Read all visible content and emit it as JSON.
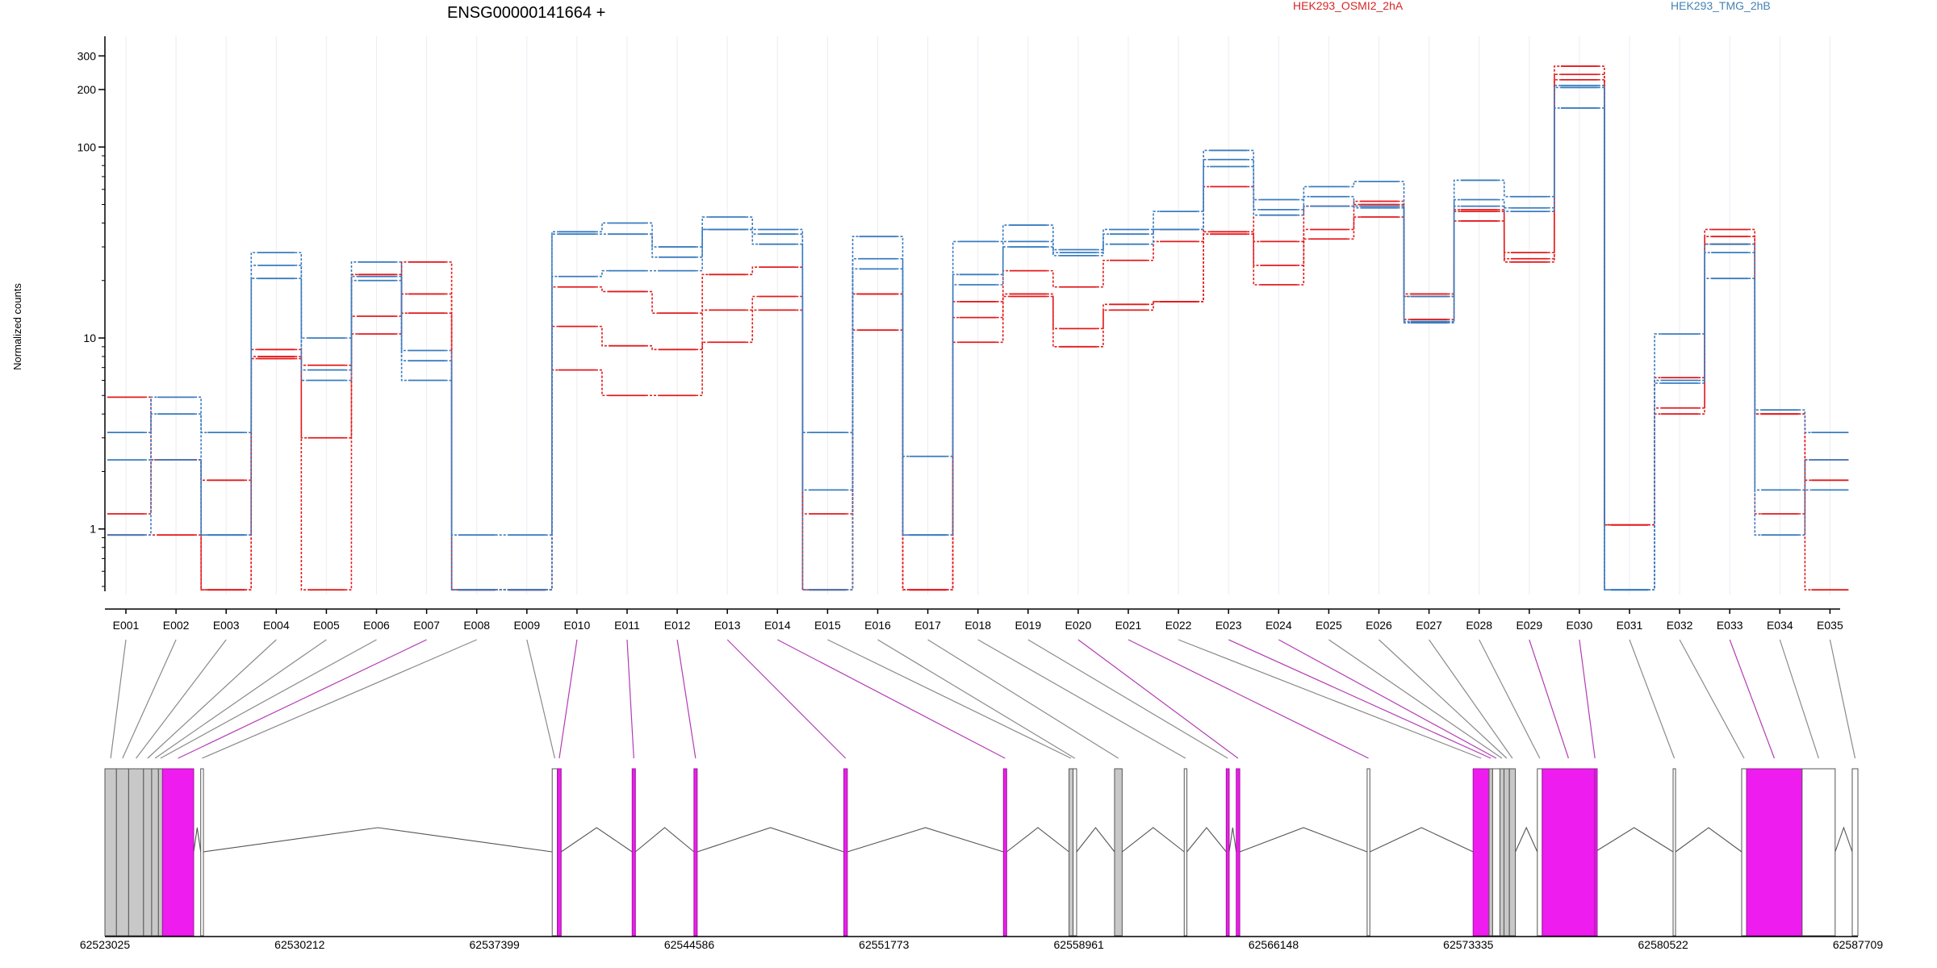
{
  "title": "ENSG00000141664 +",
  "ylabel": "Normalized counts",
  "legend": [
    {
      "name": "HEK293_OSMI2_2hA",
      "color": "#d62728"
    },
    {
      "name": "HEK293_TMG_2hB",
      "color": "#4682b4"
    }
  ],
  "colors": {
    "red": "#e31a1c",
    "blue": "#3a7bbf",
    "exon_gray": "#c8c8c8",
    "exon_magenta": "#ee1cee",
    "link_gray": "#8a8a8a",
    "link_magenta": "#b43cb4"
  },
  "chart_data": {
    "type": "line",
    "yscale": "log",
    "ylim": [
      0.5,
      380
    ],
    "yticks": [
      1,
      10,
      100,
      200,
      300
    ],
    "yticklabels": [
      "1",
      "10",
      "100",
      "200",
      "300"
    ],
    "grid": true,
    "categories": [
      "E001",
      "E002",
      "E003",
      "E004",
      "E005",
      "E006",
      "E007",
      "E008",
      "E009",
      "E010",
      "E011",
      "E012",
      "E013",
      "E014",
      "E015",
      "E016",
      "E017",
      "E018",
      "E019",
      "E020",
      "E021",
      "E022",
      "E023",
      "E024",
      "E025",
      "E026",
      "E027",
      "E028",
      "E029",
      "E030",
      "E031",
      "E032",
      "E033",
      "E034",
      "E035"
    ],
    "series": [
      {
        "group": "HEK293_OSMI2_2hA",
        "color": "red",
        "values": [
          4.9,
          2.3,
          1.8,
          8.7,
          7.2,
          21.5,
          13.5,
          0.48,
          0.48,
          11.5,
          9.1,
          8.7,
          14.0,
          16.5,
          1.2,
          17.0,
          0.48,
          12.8,
          16.5,
          11.2,
          15.0,
          15.5,
          35.0,
          24.0,
          37.0,
          52.0,
          17.0,
          46.0,
          26.0,
          265.0,
          1.05,
          6.2,
          34.0,
          4.0,
          0.48
        ]
      },
      {
        "group": "HEK293_OSMI2_2hA",
        "color": "red",
        "values": [
          0.93,
          0.93,
          0.48,
          7.8,
          3.0,
          13.0,
          17.0,
          0.48,
          0.48,
          6.8,
          5.0,
          5.0,
          9.5,
          14.0,
          0.48,
          11.0,
          0.48,
          15.5,
          17.0,
          9.0,
          14.0,
          15.5,
          36.0,
          19.0,
          33.0,
          43.0,
          12.5,
          41.0,
          25.0,
          225.0,
          1.05,
          4.0,
          31.0,
          4.0,
          1.8
        ]
      },
      {
        "group": "HEK293_OSMI2_2hA",
        "color": "red",
        "values": [
          1.2,
          2.3,
          0.48,
          8.0,
          0.48,
          10.5,
          25.0,
          0.48,
          0.48,
          18.5,
          17.5,
          13.5,
          21.5,
          23.5,
          0.48,
          17.0,
          0.48,
          9.5,
          22.5,
          18.5,
          25.5,
          32.0,
          62.0,
          32.0,
          49.0,
          50.0,
          16.5,
          47.0,
          28.0,
          240.0,
          1.05,
          4.3,
          37.0,
          1.2,
          2.3
        ]
      },
      {
        "group": "HEK293_TMG_2hB",
        "color": "blue",
        "values": [
          2.3,
          4.9,
          0.93,
          28.0,
          10.0,
          25.0,
          8.6,
          0.93,
          0.93,
          36.0,
          40.0,
          30.0,
          43.0,
          37.0,
          3.2,
          34.0,
          2.4,
          32.0,
          39.0,
          29.0,
          37.0,
          46.0,
          96.0,
          53.0,
          62.0,
          66.0,
          16.5,
          67.0,
          55.0,
          205.0,
          0.48,
          10.5,
          31.0,
          4.2,
          3.2
        ]
      },
      {
        "group": "HEK293_TMG_2hB",
        "color": "blue",
        "values": [
          3.2,
          4.0,
          3.2,
          20.5,
          6.0,
          20.0,
          6.0,
          0.48,
          0.48,
          21.0,
          22.5,
          22.5,
          37.0,
          31.0,
          1.6,
          23.0,
          0.93,
          19.0,
          30.0,
          27.0,
          31.0,
          37.0,
          79.0,
          44.0,
          55.0,
          48.0,
          12.0,
          53.0,
          46.0,
          160.0,
          0.48,
          5.8,
          20.5,
          0.93,
          1.6
        ]
      },
      {
        "group": "HEK293_TMG_2hB",
        "color": "blue",
        "values": [
          0.93,
          2.3,
          0.93,
          24.0,
          6.8,
          21.0,
          7.6,
          0.48,
          0.48,
          35.0,
          35.0,
          26.5,
          37.0,
          35.0,
          0.48,
          26.0,
          0.93,
          21.5,
          32.0,
          28.0,
          35.0,
          37.0,
          86.0,
          47.0,
          49.0,
          49.0,
          12.2,
          49.0,
          48.0,
          210.0,
          0.48,
          6.0,
          28.0,
          1.6,
          2.3
        ]
      }
    ]
  },
  "gene_model": {
    "coordinates": [
      "62523025",
      "62530212",
      "62537399",
      "62544586",
      "62551773",
      "62558961",
      "62566148",
      "62573335",
      "62580522",
      "62587709"
    ],
    "genomic_start": 62523025,
    "genomic_end": 62587709,
    "exons": [
      {
        "id": "E001",
        "start": 62523025,
        "end": 62523450,
        "color": "gray"
      },
      {
        "id": "E002",
        "start": 62523450,
        "end": 62523900,
        "color": "gray"
      },
      {
        "id": "E003",
        "start": 62523900,
        "end": 62524450,
        "color": "gray"
      },
      {
        "id": "E004",
        "start": 62524450,
        "end": 62524750,
        "color": "gray"
      },
      {
        "id": "E005",
        "start": 62524750,
        "end": 62525000,
        "color": "gray"
      },
      {
        "id": "E006",
        "start": 62525000,
        "end": 62525150,
        "color": "gray"
      },
      {
        "id": "E007",
        "start": 62525150,
        "end": 62526300,
        "color": "magenta"
      },
      {
        "id": "E008",
        "start": 62526560,
        "end": 62526660,
        "color": "white"
      },
      {
        "id": "E009",
        "start": 62539530,
        "end": 62539720,
        "color": "white"
      },
      {
        "id": "E010",
        "start": 62539720,
        "end": 62539860,
        "color": "magenta"
      },
      {
        "id": "E011",
        "start": 62542480,
        "end": 62542600,
        "color": "magenta"
      },
      {
        "id": "E012",
        "start": 62544760,
        "end": 62544880,
        "color": "magenta"
      },
      {
        "id": "E013",
        "start": 62550290,
        "end": 62550420,
        "color": "magenta"
      },
      {
        "id": "E014",
        "start": 62556180,
        "end": 62556300,
        "color": "magenta"
      },
      {
        "id": "E015",
        "start": 62558600,
        "end": 62558750,
        "color": "gray"
      },
      {
        "id": "E016",
        "start": 62558750,
        "end": 62558880,
        "color": "white"
      },
      {
        "id": "E017",
        "start": 62560280,
        "end": 62560560,
        "color": "gray"
      },
      {
        "id": "E018",
        "start": 62562850,
        "end": 62562950,
        "color": "white"
      },
      {
        "id": "E019",
        "start": 62564400,
        "end": 62564510,
        "color": "magenta"
      },
      {
        "id": "E020",
        "start": 62564770,
        "end": 62564900,
        "color": "magenta"
      },
      {
        "id": "E021",
        "start": 62569600,
        "end": 62569700,
        "color": "white"
      },
      {
        "id": "E022",
        "start": 62573510,
        "end": 62574100,
        "color": "magenta"
      },
      {
        "id": "E023",
        "start": 62574100,
        "end": 62574230,
        "color": "gray"
      },
      {
        "id": "E024",
        "start": 62574230,
        "end": 62574500,
        "color": "white"
      },
      {
        "id": "E025",
        "start": 62574500,
        "end": 62574650,
        "color": "gray"
      },
      {
        "id": "E026",
        "start": 62574650,
        "end": 62574850,
        "color": "gray"
      },
      {
        "id": "E027",
        "start": 62574850,
        "end": 62575070,
        "color": "gray"
      },
      {
        "id": "E028",
        "start": 62575880,
        "end": 62576060,
        "color": "white"
      },
      {
        "id": "E029",
        "start": 62576060,
        "end": 62578000,
        "color": "magenta"
      },
      {
        "id": "E030",
        "start": 62578000,
        "end": 62578010,
        "color": "magenta"
      },
      {
        "id": "E031",
        "start": 62580890,
        "end": 62580980,
        "color": "white"
      },
      {
        "id": "E032",
        "start": 62583420,
        "end": 62583600,
        "color": "white"
      },
      {
        "id": "E033",
        "start": 62583600,
        "end": 62585650,
        "color": "magenta"
      },
      {
        "id": "E034",
        "start": 62585650,
        "end": 62586870,
        "color": "white"
      },
      {
        "id": "E035",
        "start": 62587500,
        "end": 62587709,
        "color": "white"
      }
    ],
    "links": [
      {
        "exon": "E001",
        "color": "gray"
      },
      {
        "exon": "E002",
        "color": "gray"
      },
      {
        "exon": "E003",
        "color": "gray"
      },
      {
        "exon": "E004",
        "color": "gray"
      },
      {
        "exon": "E005",
        "color": "gray"
      },
      {
        "exon": "E006",
        "color": "gray"
      },
      {
        "exon": "E007",
        "color": "magenta"
      },
      {
        "exon": "E008",
        "color": "gray"
      },
      {
        "exon": "E009",
        "color": "gray"
      },
      {
        "exon": "E010",
        "color": "magenta"
      },
      {
        "exon": "E011",
        "color": "magenta"
      },
      {
        "exon": "E012",
        "color": "magenta"
      },
      {
        "exon": "E013",
        "color": "magenta"
      },
      {
        "exon": "E014",
        "color": "magenta"
      },
      {
        "exon": "E015",
        "color": "gray"
      },
      {
        "exon": "E016",
        "color": "gray"
      },
      {
        "exon": "E017",
        "color": "gray"
      },
      {
        "exon": "E018",
        "color": "gray"
      },
      {
        "exon": "E019",
        "color": "gray"
      },
      {
        "exon": "E020",
        "color": "magenta"
      },
      {
        "exon": "E021",
        "color": "magenta"
      },
      {
        "exon": "E022",
        "color": "gray"
      },
      {
        "exon": "E023",
        "color": "magenta"
      },
      {
        "exon": "E024",
        "color": "magenta"
      },
      {
        "exon": "E025",
        "color": "gray"
      },
      {
        "exon": "E026",
        "color": "gray"
      },
      {
        "exon": "E027",
        "color": "gray"
      },
      {
        "exon": "E028",
        "color": "gray"
      },
      {
        "exon": "E029",
        "color": "magenta"
      },
      {
        "exon": "E030",
        "color": "magenta"
      },
      {
        "exon": "E031",
        "color": "gray"
      },
      {
        "exon": "E032",
        "color": "gray"
      },
      {
        "exon": "E033",
        "color": "magenta"
      },
      {
        "exon": "E034",
        "color": "gray"
      },
      {
        "exon": "E035",
        "color": "gray"
      }
    ]
  }
}
